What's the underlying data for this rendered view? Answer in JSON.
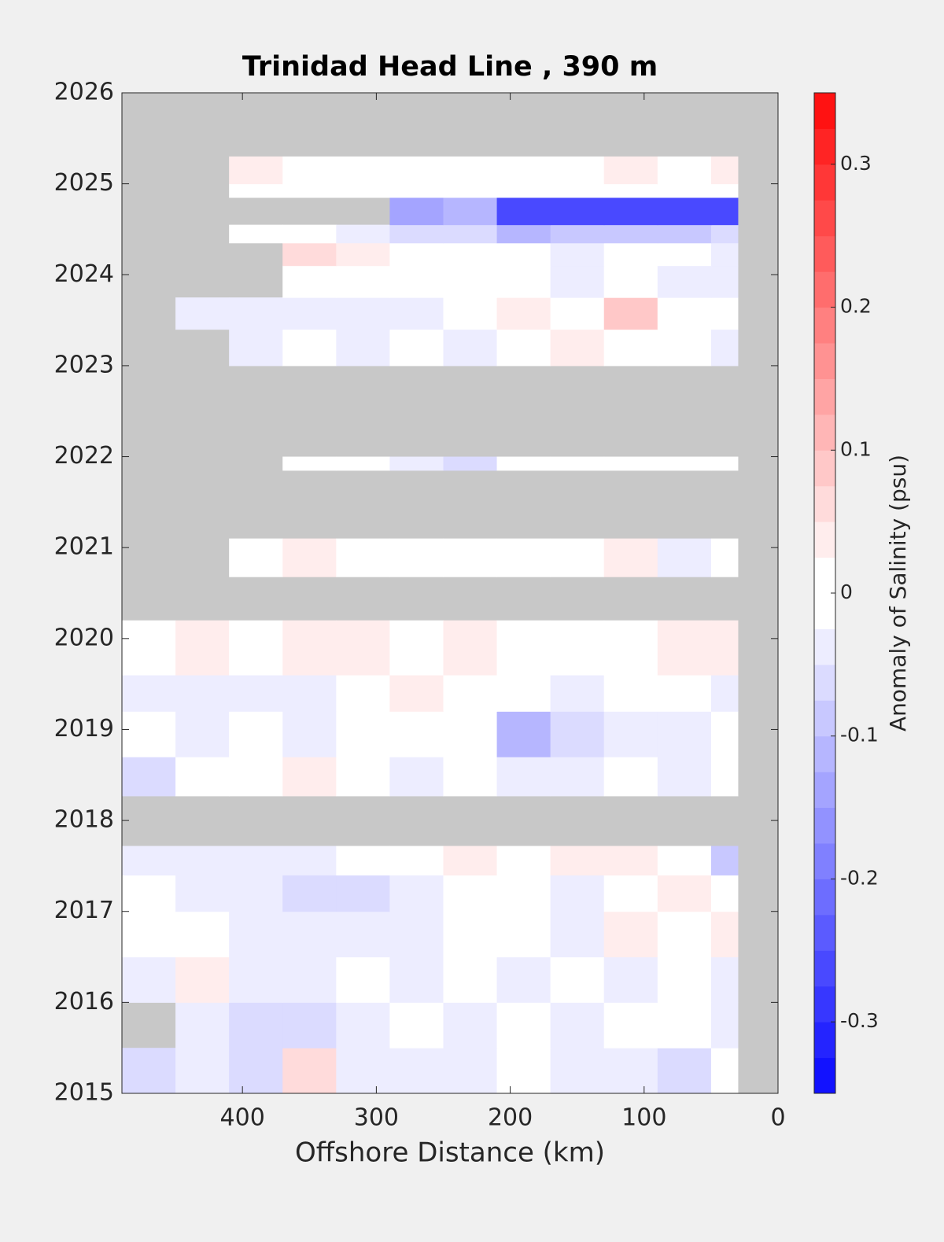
{
  "chart_data": {
    "type": "contour",
    "title": "Trinidad Head Line , 390 m",
    "xlabel": "Offshore Distance (km)",
    "colorbar_label": "Anomaly of Salinity (psu)",
    "xlim": [
      490,
      0
    ],
    "ylim": [
      2015,
      2026
    ],
    "xticks": [
      400,
      300,
      200,
      100,
      0
    ],
    "yticks": [
      2015,
      2016,
      2017,
      2018,
      2019,
      2020,
      2021,
      2022,
      2023,
      2024,
      2025,
      2026
    ],
    "clim": [
      -0.35,
      0.35
    ],
    "cticks": [
      -0.3,
      -0.2,
      -0.1,
      0,
      0.1,
      0.2,
      0.3
    ],
    "level_step": 0.025,
    "missing_color": "#c8c8c8",
    "x_edges": [
      490,
      450,
      410,
      370,
      330,
      290,
      250,
      210,
      170,
      130,
      90,
      50,
      30
    ],
    "y_edges": [
      2015,
      2015.5,
      2016,
      2016.5,
      2017,
      2017.4,
      2017.72,
      2018.27,
      2018.7,
      2019.2,
      2019.6,
      2020.2,
      2020.68,
      2021.1,
      2021.85,
      2022.0,
      2023.0,
      2023.4,
      2023.75,
      2024.1,
      2024.35,
      2024.55,
      2024.85,
      2025.0,
      2025.3,
      2026
    ],
    "z": [
      [
        -0.05,
        -0.03,
        -0.05,
        0.05,
        -0.03,
        -0.03,
        -0.03,
        0,
        -0.03,
        -0.03,
        -0.05,
        0
      ],
      [
        null,
        -0.03,
        -0.05,
        -0.05,
        -0.03,
        0,
        -0.03,
        0,
        -0.03,
        0,
        0,
        -0.03
      ],
      [
        -0.03,
        0.03,
        -0.03,
        -0.03,
        0,
        -0.03,
        0,
        -0.03,
        0,
        -0.03,
        0,
        -0.03
      ],
      [
        0,
        0,
        -0.03,
        -0.03,
        -0.03,
        -0.03,
        0,
        0,
        -0.03,
        0.03,
        0,
        0.03
      ],
      [
        0,
        -0.03,
        -0.03,
        -0.05,
        -0.05,
        -0.03,
        0,
        0,
        -0.03,
        0,
        0.03,
        0
      ],
      [
        -0.03,
        -0.03,
        -0.03,
        -0.03,
        0,
        0,
        0.03,
        0,
        0.03,
        0.03,
        0,
        -0.08
      ],
      [
        null,
        null,
        null,
        null,
        null,
        null,
        null,
        null,
        null,
        null,
        null,
        null
      ],
      [
        -0.05,
        0,
        0,
        0.03,
        0,
        -0.03,
        0,
        -0.03,
        -0.03,
        0,
        -0.03,
        0
      ],
      [
        0,
        -0.03,
        0,
        -0.03,
        0,
        0,
        0,
        -0.1,
        -0.05,
        -0.03,
        -0.03,
        0
      ],
      [
        -0.03,
        -0.03,
        -0.03,
        -0.03,
        0,
        0.03,
        0,
        0,
        -0.03,
        0,
        0,
        -0.03
      ],
      [
        0,
        0.03,
        0,
        0.03,
        0.03,
        0,
        0.03,
        0,
        0,
        0,
        0.03,
        0.03
      ],
      [
        null,
        null,
        null,
        null,
        null,
        null,
        null,
        null,
        null,
        null,
        null,
        null
      ],
      [
        null,
        null,
        0,
        0.03,
        0,
        0,
        0,
        0,
        0,
        0.03,
        -0.03,
        0
      ],
      [
        null,
        null,
        null,
        null,
        null,
        null,
        null,
        null,
        null,
        null,
        null,
        null
      ],
      [
        null,
        null,
        null,
        0,
        0,
        -0.03,
        -0.05,
        0,
        0,
        0,
        0,
        0
      ],
      [
        null,
        null,
        null,
        null,
        null,
        null,
        null,
        null,
        null,
        null,
        null,
        null
      ],
      [
        null,
        null,
        -0.03,
        0,
        -0.03,
        0,
        -0.03,
        0,
        0.03,
        0,
        0,
        -0.03
      ],
      [
        null,
        -0.03,
        -0.03,
        -0.03,
        -0.03,
        -0.03,
        0,
        0.03,
        0,
        0.08,
        0,
        0
      ],
      [
        null,
        null,
        null,
        0,
        0,
        0,
        0,
        0,
        -0.03,
        0,
        -0.03,
        -0.03
      ],
      [
        null,
        null,
        null,
        0.05,
        0.03,
        0,
        0,
        0,
        -0.03,
        0,
        0,
        -0.03
      ],
      [
        null,
        null,
        0,
        0,
        -0.03,
        -0.05,
        -0.05,
        -0.1,
        -0.08,
        -0.08,
        -0.08,
        -0.05
      ],
      [
        null,
        null,
        null,
        null,
        null,
        -0.15,
        -0.1,
        -0.25,
        -0.25,
        -0.25,
        -0.25,
        -0.25
      ],
      [
        null,
        null,
        0,
        0,
        0,
        0,
        0,
        0,
        0,
        0,
        0,
        0
      ],
      [
        null,
        null,
        0.03,
        0,
        0,
        0,
        0,
        0,
        0,
        0.03,
        0,
        0.03
      ],
      [
        null,
        null,
        null,
        null,
        null,
        null,
        null,
        null,
        null,
        null,
        null,
        null
      ]
    ]
  }
}
